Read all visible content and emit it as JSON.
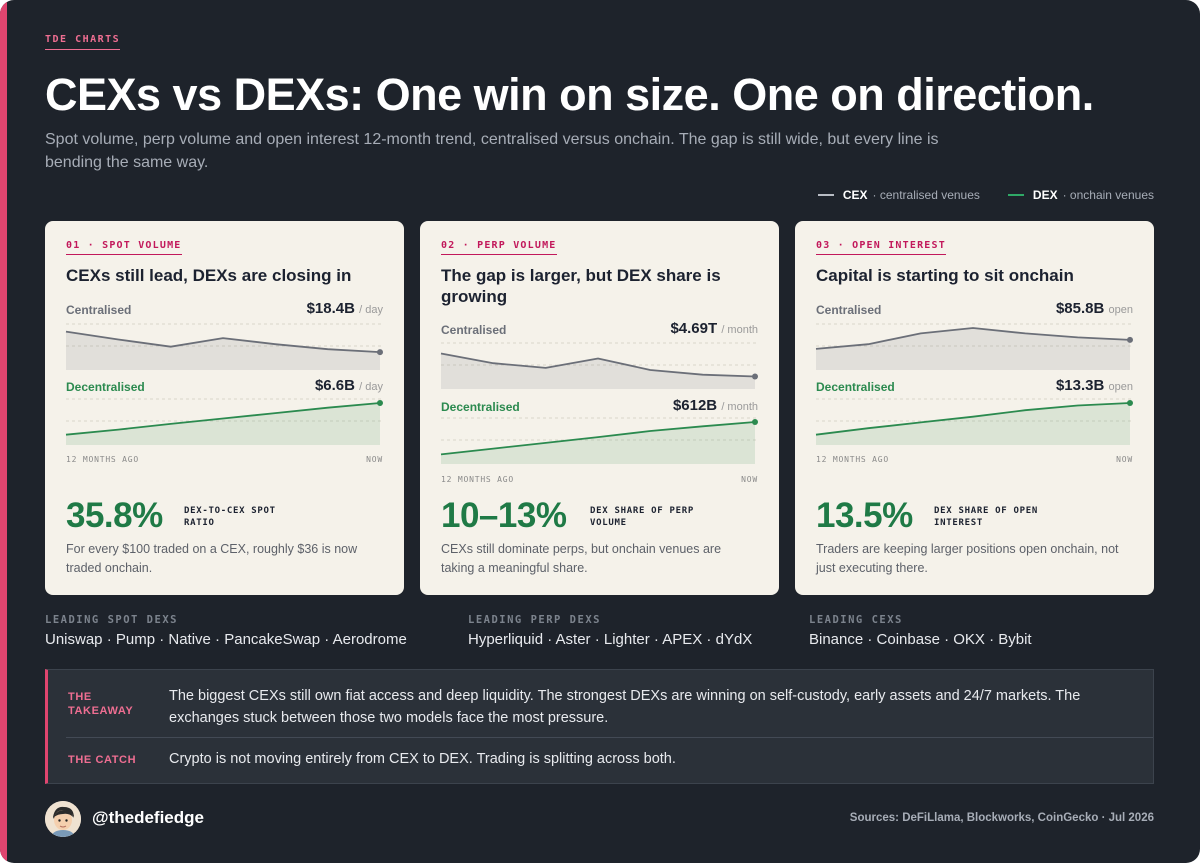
{
  "brand": {
    "kicker": "TDE CHARTS",
    "accent_color": "#e0456f",
    "cex_color": "#6b6f78",
    "dex_color": "#2b8a4f"
  },
  "headline": "CEXs vs DEXs: One win on size. One on direction.",
  "subhead": "Spot volume, perp volume and open interest 12-month trend, centralised versus onchain. The gap is still wide, but every line is bending the same way.",
  "legend": [
    {
      "key": "CEX",
      "desc": "· centralised venues",
      "color": "#b8bcc4"
    },
    {
      "key": "DEX",
      "desc": "· onchain venues",
      "color": "#2fa866"
    }
  ],
  "axis": {
    "start": "12 MONTHS AGO",
    "end": "NOW"
  },
  "cards": [
    {
      "kicker": "01 · SPOT VOLUME",
      "title": "CEXs still lead, DEXs are closing in",
      "centralised": {
        "label": "Centralised",
        "value": "$18.4B",
        "unit": "/ day"
      },
      "decentralised": {
        "label": "Decentralised",
        "value": "$6.6B",
        "unit": "/ day"
      },
      "big_stat": "35.8%",
      "stat_label": "DEX-TO-CEX SPOT RATIO",
      "description": "For every $100 traded on a CEX, roughly $36 is now traded onchain."
    },
    {
      "kicker": "02 · PERP VOLUME",
      "title": "The gap is larger, but DEX share is growing",
      "centralised": {
        "label": "Centralised",
        "value": "$4.69T",
        "unit": "/ month"
      },
      "decentralised": {
        "label": "Decentralised",
        "value": "$612B",
        "unit": "/ month"
      },
      "big_stat": "10–13%",
      "stat_label": "DEX SHARE OF PERP VOLUME",
      "description": "CEXs still dominate perps, but onchain venues are taking a meaningful share."
    },
    {
      "kicker": "03 · OPEN INTEREST",
      "title": "Capital is starting to sit onchain",
      "centralised": {
        "label": "Centralised",
        "value": "$85.8B",
        "unit": "open"
      },
      "decentralised": {
        "label": "Decentralised",
        "value": "$13.3B",
        "unit": "open"
      },
      "big_stat": "13.5%",
      "stat_label": "DEX SHARE OF OPEN INTEREST",
      "description": "Traders are keeping larger positions open onchain, not just executing there."
    }
  ],
  "chart_data": [
    {
      "type": "line",
      "series": [
        {
          "name": "Centralised",
          "values": [
            0.9,
            0.68,
            0.48,
            0.72,
            0.55,
            0.41,
            0.33
          ]
        },
        {
          "name": "Decentralised",
          "values": [
            0.12,
            0.26,
            0.42,
            0.57,
            0.72,
            0.87,
            1.0
          ]
        }
      ],
      "ylim": [
        0,
        1
      ]
    },
    {
      "type": "line",
      "series": [
        {
          "name": "Centralised",
          "values": [
            0.82,
            0.55,
            0.42,
            0.68,
            0.36,
            0.23,
            0.18
          ]
        },
        {
          "name": "Decentralised",
          "values": [
            0.1,
            0.26,
            0.42,
            0.58,
            0.75,
            0.88,
            1.0
          ]
        }
      ],
      "ylim": [
        0,
        1
      ]
    },
    {
      "type": "line",
      "series": [
        {
          "name": "Centralised",
          "values": [
            0.42,
            0.55,
            0.85,
            1.0,
            0.85,
            0.74,
            0.67
          ]
        },
        {
          "name": "Decentralised",
          "values": [
            0.12,
            0.3,
            0.46,
            0.62,
            0.8,
            0.93,
            1.0
          ]
        }
      ],
      "ylim": [
        0,
        1
      ]
    }
  ],
  "leading": [
    {
      "kicker": "LEADING SPOT DEXS",
      "list": "Uniswap · Pump · Native · PancakeSwap · Aerodrome"
    },
    {
      "kicker": "LEADING PERP DEXS",
      "list": "Hyperliquid · Aster · Lighter · APEX · dYdX"
    },
    {
      "kicker": "LEADING CEXS",
      "list": "Binance · Coinbase · OKX · Bybit"
    }
  ],
  "takeaway": {
    "label": "THE TAKEAWAY",
    "text": "The biggest CEXs still own fiat access and deep liquidity. The strongest DEXs are winning on self-custody, early assets and 24/7 markets. The exchanges stuck between those two models face the most pressure."
  },
  "catch": {
    "label": "THE CATCH",
    "text": "Crypto is not moving entirely from CEX to DEX. Trading is splitting across both."
  },
  "footer": {
    "handle": "@thedefiedge",
    "sources": "Sources: DeFiLlama, Blockworks, CoinGecko · Jul 2026"
  }
}
